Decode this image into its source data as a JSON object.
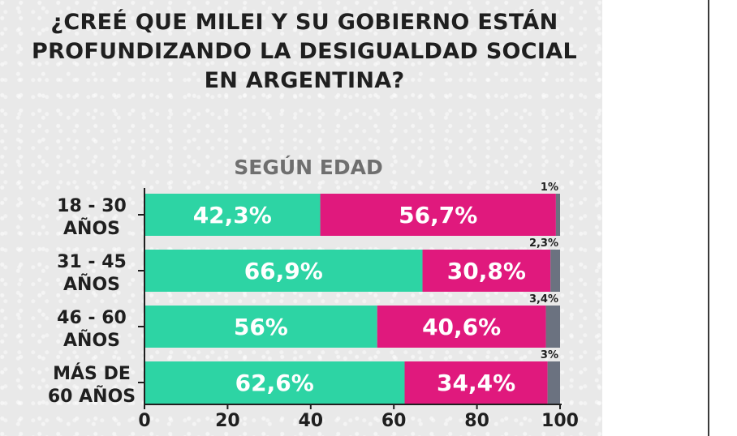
{
  "colors": {
    "si": "#2dd4a4",
    "no": "#e0197d",
    "ns": "#6b7280",
    "axis": "#1f1f1f"
  },
  "chart_data": {
    "type": "bar",
    "orientation": "horizontal",
    "stacked": true,
    "title": "¿CREÉ QUE MILEI Y SU GOBIERNO ESTÁN PROFUNDIZANDO LA DESIGUALDAD SOCIAL EN ARGENTINA?",
    "subtitle": "SEGÚN EDAD",
    "categories": [
      [
        "18 - 30",
        "AÑOS"
      ],
      [
        "31 - 45",
        "AÑOS"
      ],
      [
        "46 - 60",
        "AÑOS"
      ],
      [
        "MÁS DE",
        "60 AÑOS"
      ]
    ],
    "series": [
      {
        "values": [
          42.3,
          66.9,
          56,
          62.6
        ],
        "labels": [
          "42,3%",
          "66,9%",
          "56%",
          "62,6%"
        ]
      },
      {
        "values": [
          56.7,
          30.8,
          40.6,
          34.4
        ],
        "labels": [
          "56,7%",
          "30,8%",
          "40,6%",
          "34,4%"
        ]
      },
      {
        "values": [
          1,
          2.3,
          3.4,
          3
        ],
        "labels": [
          "1%",
          "2,3%",
          "3,4%",
          "3%"
        ]
      }
    ],
    "xlim": [
      0,
      100
    ],
    "xticks": [
      "0",
      "20",
      "40",
      "60",
      "80",
      "100"
    ],
    "grid": false,
    "legend": "none"
  }
}
